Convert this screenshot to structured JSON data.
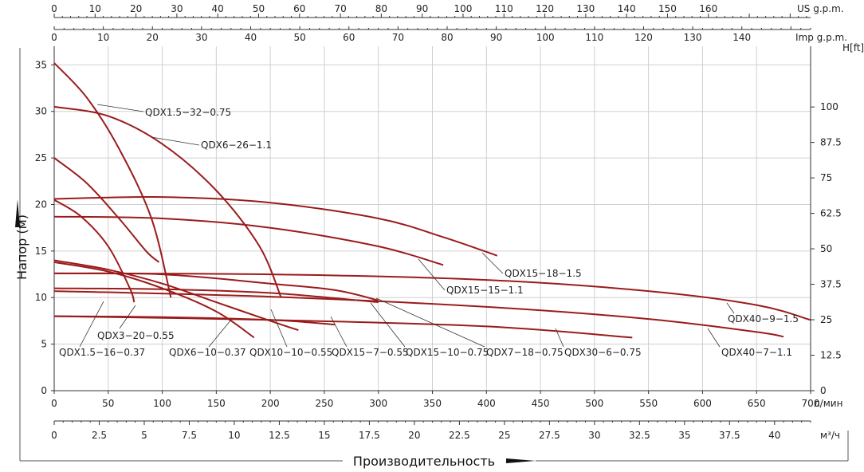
{
  "chart_data": {
    "type": "line",
    "title": "",
    "xlabel": "Производительность",
    "ylabel": "Напор (м)",
    "grid": true,
    "x_axes": [
      {
        "unit": "л/мин",
        "range": [
          0,
          700
        ],
        "ticks": [
          "0",
          "50",
          "100",
          "150",
          "200",
          "250",
          "300",
          "350",
          "400",
          "450",
          "500",
          "550",
          "600",
          "650",
          "700"
        ]
      },
      {
        "unit": "м³/ч",
        "range": [
          0,
          42
        ],
        "ticks": [
          "0",
          "2.5",
          "5",
          "7.5",
          "10",
          "12.5",
          "15",
          "17.5",
          "20",
          "22.5",
          "25",
          "27.5",
          "30",
          "32.5",
          "35",
          "37.5",
          "40"
        ]
      },
      {
        "unit": "US g.p.m.",
        "range": [
          0,
          185
        ],
        "ticks": [
          "0",
          "10",
          "20",
          "30",
          "40",
          "50",
          "60",
          "70",
          "80",
          "90",
          "100",
          "110",
          "120",
          "130",
          "140",
          "150",
          "160"
        ]
      },
      {
        "unit": "Imp g.p.m.",
        "range": [
          0,
          154
        ],
        "ticks": [
          "0",
          "10",
          "20",
          "30",
          "40",
          "50",
          "60",
          "70",
          "80",
          "90",
          "100",
          "110",
          "120",
          "130",
          "140"
        ]
      }
    ],
    "y_axes": [
      {
        "unit": "м",
        "range": [
          0,
          37
        ],
        "ticks": [
          "0",
          "5",
          "10",
          "15",
          "20",
          "25",
          "30",
          "35"
        ]
      },
      {
        "unit": "H[ft]",
        "range": [
          0,
          121.4
        ],
        "ticks": [
          "0",
          "12.5",
          "25",
          "37.5",
          "50",
          "62.5",
          "75",
          "87.5",
          "100"
        ]
      }
    ],
    "series": [
      {
        "name": "QDX1.5-32-0.75",
        "x": [
          0,
          30,
          60,
          90,
          108
        ],
        "y": [
          35.2,
          31.5,
          26.0,
          18.5,
          10.0
        ]
      },
      {
        "name": "QDX6-26-1.1",
        "x": [
          0,
          50,
          100,
          150,
          190,
          210
        ],
        "y": [
          30.5,
          29.5,
          26.5,
          21.5,
          15.5,
          10.0
        ]
      },
      {
        "name": "QDX3-20-0.55",
        "x": [
          0,
          30,
          60,
          85,
          97
        ],
        "y": [
          25.0,
          22.3,
          18.5,
          15.0,
          13.8
        ]
      },
      {
        "name": "QDX1.5-16-0.37",
        "x": [
          0,
          25,
          50,
          70,
          74
        ],
        "y": [
          20.5,
          18.7,
          15.5,
          11.0,
          9.5
        ]
      },
      {
        "name": "QDX15-18-1.5",
        "x": [
          0,
          100,
          200,
          300,
          360,
          410
        ],
        "y": [
          20.6,
          20.8,
          20.2,
          18.5,
          16.5,
          14.5
        ]
      },
      {
        "name": "QDX15-15-1.1",
        "x": [
          0,
          100,
          200,
          300,
          360
        ],
        "y": [
          18.7,
          18.5,
          17.5,
          15.5,
          13.5
        ]
      },
      {
        "name": "QDX10-10-0.55",
        "x": [
          0,
          50,
          100,
          150,
          200,
          226
        ],
        "y": [
          14.0,
          13.0,
          11.5,
          9.5,
          7.5,
          6.5
        ]
      },
      {
        "name": "QDX6-10-0.37",
        "x": [
          0,
          50,
          100,
          150,
          185
        ],
        "y": [
          13.8,
          12.8,
          11.0,
          8.5,
          5.7
        ]
      },
      {
        "name": "QDX15-10-0.75",
        "x": [
          0,
          100,
          200,
          260,
          300
        ],
        "y": [
          12.6,
          12.5,
          11.5,
          10.8,
          9.7
        ]
      },
      {
        "name": "QDX40-9-1.5",
        "x": [
          0,
          200,
          400,
          550,
          650,
          700
        ],
        "y": [
          12.6,
          12.5,
          11.9,
          10.7,
          9.2,
          7.6
        ]
      },
      {
        "name": "QDX7-18-0.75",
        "x": [
          0,
          100,
          200,
          300
        ],
        "y": [
          11.0,
          10.9,
          10.5,
          9.5
        ]
      },
      {
        "name": "QDX40-7-1.1",
        "x": [
          0,
          200,
          400,
          550,
          650,
          675
        ],
        "y": [
          10.7,
          10.1,
          9.0,
          7.7,
          6.3,
          5.8
        ]
      },
      {
        "name": "QDX15-7-0.55",
        "x": [
          0,
          100,
          200,
          260
        ],
        "y": [
          8.0,
          7.9,
          7.6,
          7.1
        ]
      },
      {
        "name": "QDX30-6-0.75",
        "x": [
          0,
          200,
          400,
          535
        ],
        "y": [
          8.0,
          7.6,
          6.9,
          5.7
        ]
      }
    ]
  }
}
